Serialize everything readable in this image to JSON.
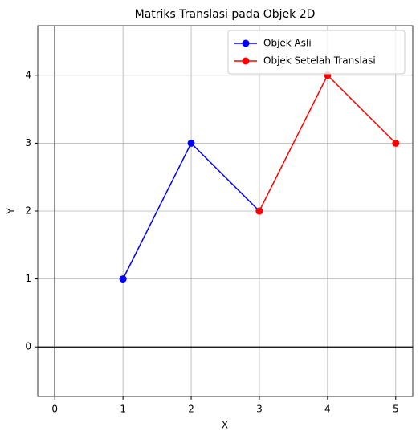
{
  "chart_data": {
    "type": "line",
    "title": "Matriks Translasi pada Objek 2D",
    "xlabel": "X",
    "ylabel": "Y",
    "series": [
      {
        "name": "Objek Asli",
        "color": "#0000ff",
        "x": [
          1,
          2,
          3
        ],
        "values": [
          1,
          3,
          2
        ]
      },
      {
        "name": "Objek Setelah Translasi",
        "color": "#ff0000",
        "x": [
          3,
          4,
          5
        ],
        "values": [
          2,
          4,
          3
        ]
      }
    ],
    "xlim": [
      -0.25,
      5.25
    ],
    "ylim": [
      -0.73,
      4.73
    ],
    "xticks": [
      0,
      1,
      2,
      3,
      4,
      5
    ],
    "yticks": [
      0,
      1,
      2,
      3,
      4
    ],
    "axhline": 0,
    "axvline": 0,
    "grid": true,
    "legend": "upper right"
  }
}
